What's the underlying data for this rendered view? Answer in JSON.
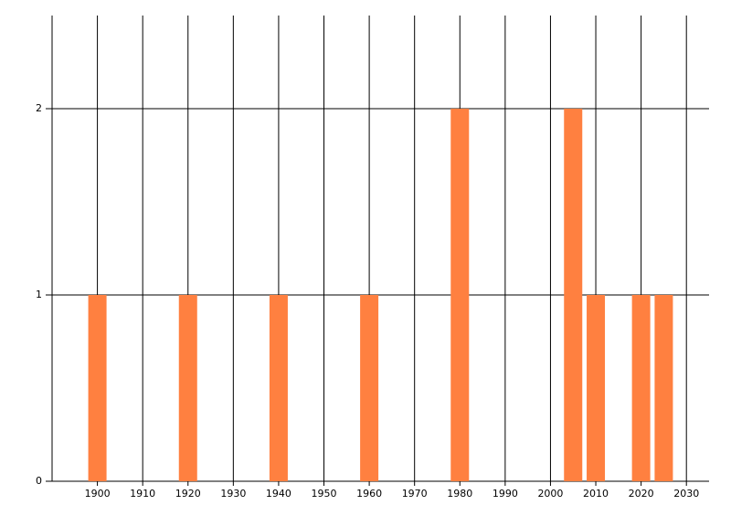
{
  "chart_data": {
    "type": "bar",
    "x": [
      1900,
      1920,
      1940,
      1960,
      1980,
      2005,
      2010,
      2020,
      2025
    ],
    "values": [
      1,
      1,
      1,
      1,
      2,
      2,
      1,
      1,
      1
    ],
    "color": "#ff8040",
    "xlim": [
      1890,
      2035
    ],
    "xticks": [
      1900,
      1910,
      1920,
      1930,
      1940,
      1950,
      1960,
      1970,
      1980,
      1990,
      2000,
      2010,
      2020,
      2030
    ],
    "ylim": [
      0,
      2.5
    ],
    "yticks": [
      0,
      1,
      2
    ],
    "grid": true
  }
}
